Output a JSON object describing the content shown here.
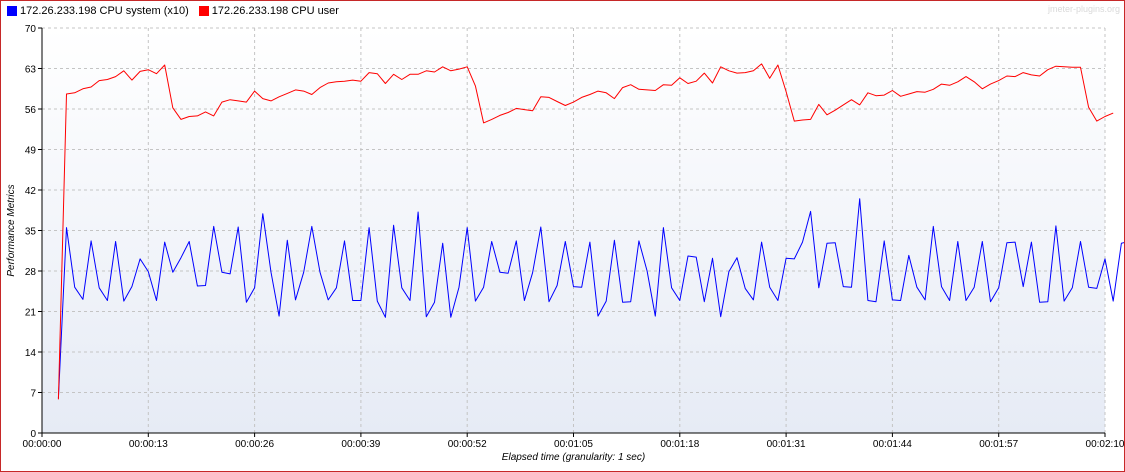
{
  "watermark": "jmeter-plugins.org",
  "chart_data": {
    "type": "line",
    "xlabel": "Elapsed time (granularity: 1 sec)",
    "ylabel": "Performance Metrics",
    "ylim": [
      0,
      70
    ],
    "yticks": [
      0,
      7,
      14,
      21,
      28,
      35,
      42,
      49,
      56,
      63,
      70
    ],
    "xlim": [
      0,
      130
    ],
    "xticks": [
      0,
      13,
      26,
      39,
      52,
      65,
      78,
      91,
      104,
      117,
      130
    ],
    "xtick_labels": [
      "00:00:00",
      "00:00:13",
      "00:00:26",
      "00:00:39",
      "00:00:52",
      "00:01:05",
      "00:01:18",
      "00:01:31",
      "00:01:44",
      "00:01:57",
      "00:02:10"
    ],
    "grid": true,
    "legend_position": "top-left",
    "x_start": 2,
    "x_step": 1,
    "series": [
      {
        "name": "172.26.233.198 CPU system (x10)",
        "color": "#0000ff",
        "values": [
          6,
          35.5,
          25.2,
          23.1,
          33.2,
          25.1,
          22.9,
          33.1,
          22.8,
          25.3,
          30.1,
          27.9,
          22.9,
          33.0,
          27.8,
          30.3,
          33.1,
          25.4,
          25.5,
          35.7,
          27.8,
          27.5,
          35.6,
          22.6,
          25.1,
          37.9,
          27.8,
          20.2,
          33.3,
          23.0,
          27.8,
          35.7,
          27.8,
          23.0,
          25.1,
          33.2,
          22.9,
          22.9,
          35.5,
          22.8,
          20.0,
          35.9,
          25.1,
          22.9,
          38.2,
          20.1,
          22.6,
          32.8,
          20.0,
          25.2,
          35.5,
          22.8,
          25.2,
          33.1,
          27.8,
          27.6,
          33.2,
          22.9,
          27.7,
          35.6,
          22.7,
          25.5,
          33.1,
          25.3,
          25.2,
          33.0,
          20.2,
          22.8,
          33.3,
          22.6,
          22.7,
          33.2,
          28.0,
          20.2,
          35.5,
          25.1,
          22.9,
          30.6,
          30.4,
          22.7,
          30.2,
          20.1,
          27.9,
          30.3,
          25.0,
          23.0,
          33.0,
          25.2,
          22.9,
          30.2,
          30.1,
          33.0,
          38.3,
          25.1,
          32.8,
          32.9,
          25.3,
          25.2,
          40.5,
          22.9,
          22.7,
          33.2,
          23.0,
          22.9,
          30.7,
          25.2,
          23.0,
          35.7,
          25.3,
          22.9,
          33.1,
          22.9,
          25.2,
          33.1,
          22.7,
          25.1,
          32.9,
          33.0,
          25.3,
          33.0,
          22.6,
          22.7,
          35.8,
          22.8,
          25.1,
          33.1,
          25.2,
          25.0,
          30.1,
          22.8,
          32.8,
          33.1,
          35.5
        ]
      },
      {
        "name": "172.26.233.198 CPU user",
        "color": "#ff0000",
        "values": [
          5.8,
          58.6,
          58.8,
          59.5,
          59.8,
          60.9,
          61.1,
          61.6,
          62.6,
          61.0,
          62.5,
          62.8,
          62.1,
          63.6,
          56.2,
          54.2,
          54.7,
          54.8,
          55.5,
          54.8,
          57.2,
          57.6,
          57.4,
          57.2,
          59.1,
          57.8,
          57.4,
          58.1,
          58.7,
          59.3,
          59.1,
          58.5,
          59.7,
          60.5,
          60.7,
          60.8,
          61.0,
          60.8,
          62.3,
          62.1,
          60.4,
          62.0,
          61.1,
          62.0,
          62.0,
          62.6,
          62.4,
          63.3,
          62.6,
          62.9,
          63.3,
          60.0,
          53.6,
          54.2,
          54.9,
          55.4,
          56.1,
          55.9,
          55.7,
          58.1,
          58.0,
          57.3,
          56.6,
          57.2,
          58.0,
          58.5,
          59.1,
          58.8,
          57.8,
          59.7,
          60.2,
          59.4,
          59.3,
          59.2,
          60.2,
          60.1,
          61.4,
          60.4,
          60.8,
          62.2,
          60.5,
          63.3,
          62.6,
          62.2,
          62.3,
          62.6,
          63.8,
          61.3,
          63.6,
          59.0,
          53.9,
          54.1,
          54.2,
          56.8,
          55.0,
          55.8,
          56.7,
          57.6,
          56.7,
          58.8,
          58.3,
          58.4,
          59.2,
          58.2,
          58.6,
          59.0,
          58.9,
          59.4,
          60.3,
          60.1,
          60.7,
          61.6,
          60.7,
          59.5,
          60.3,
          60.9,
          61.7,
          61.6,
          62.3,
          61.9,
          61.7,
          62.8,
          63.4,
          63.3,
          63.2,
          63.2,
          56.3,
          53.9,
          54.7,
          55.3
        ]
      }
    ]
  }
}
